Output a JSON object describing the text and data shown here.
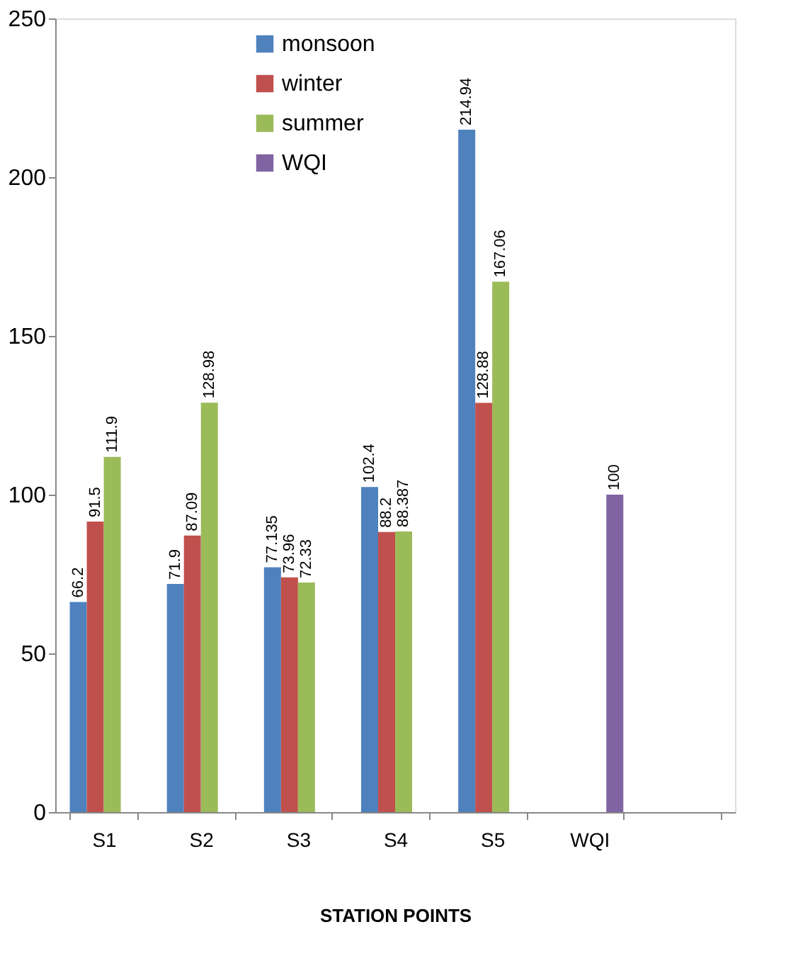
{
  "chart_data": {
    "type": "bar",
    "xlabel": "STATION POINTS",
    "categories": [
      "S1",
      "S2",
      "S3",
      "S4",
      "S5",
      "WQI",
      null
    ],
    "series": [
      {
        "name": "monsoon",
        "color": "#4f81bd",
        "values": [
          66.2,
          71.9,
          77.135,
          102.4,
          214.94,
          null,
          null
        ]
      },
      {
        "name": "winter",
        "color": "#c0504d",
        "values": [
          91.5,
          87.09,
          73.96,
          88.2,
          128.88,
          null,
          null
        ]
      },
      {
        "name": "summer",
        "color": "#9bbb59",
        "values": [
          111.9,
          128.98,
          72.33,
          88.387,
          167.06,
          null,
          null
        ]
      },
      {
        "name": "WQI",
        "color": "#8064a2",
        "values": [
          null,
          null,
          null,
          null,
          null,
          100,
          null
        ]
      }
    ],
    "ylim": [
      0,
      250
    ],
    "yticks": [
      0,
      50,
      100,
      150,
      200,
      250
    ],
    "grid": false,
    "legend": "top",
    "data_labels": true
  }
}
